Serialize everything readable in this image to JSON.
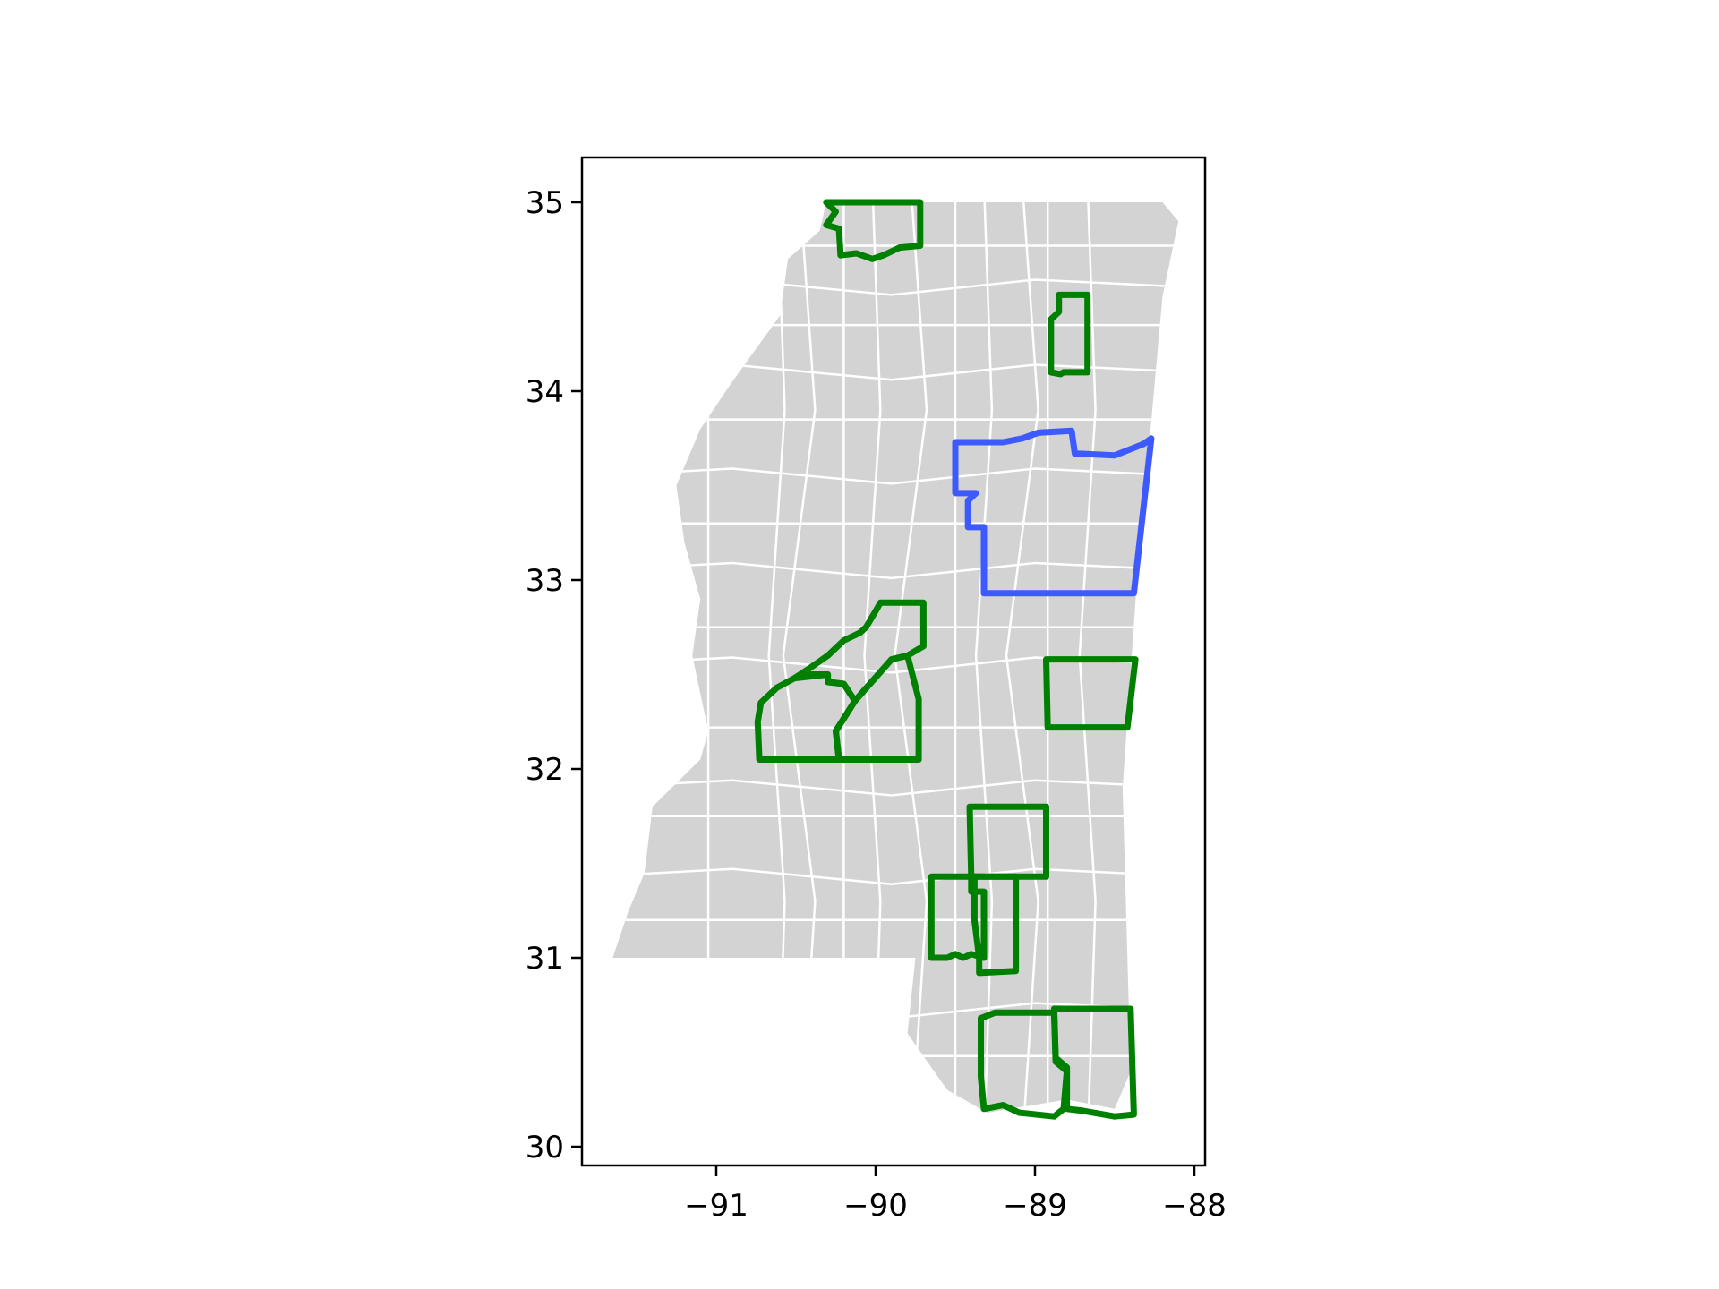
{
  "chart_data": {
    "type": "map",
    "title": "",
    "xlabel": "",
    "ylabel": "",
    "xlim": [
      -91.85,
      -87.85
    ],
    "ylim": [
      29.9,
      35.25
    ],
    "grid": false,
    "xticks": [
      {
        "value": -91,
        "label": "−91"
      },
      {
        "value": -90,
        "label": "−90"
      },
      {
        "value": -89,
        "label": "−89"
      },
      {
        "value": -88,
        "label": "−88"
      }
    ],
    "yticks": [
      {
        "value": 30,
        "label": "30"
      },
      {
        "value": 31,
        "label": "31"
      },
      {
        "value": 32,
        "label": "32"
      },
      {
        "value": 33,
        "label": "33"
      },
      {
        "value": 34,
        "label": "34"
      },
      {
        "value": 35,
        "label": "35"
      }
    ],
    "colors": {
      "state_fill": "#d3d3d3",
      "county_border": "#ffffff",
      "selected_region": "#3d5afe",
      "highlighted_counties": "#008000",
      "axes": "#000000"
    },
    "state_outline": [
      [
        -90.31,
        35.0
      ],
      [
        -88.2,
        35.0
      ],
      [
        -88.1,
        34.9
      ],
      [
        -88.2,
        34.5
      ],
      [
        -88.36,
        33.0
      ],
      [
        -88.45,
        31.9
      ],
      [
        -88.4,
        30.4
      ],
      [
        -88.5,
        30.2
      ],
      [
        -88.8,
        30.25
      ],
      [
        -89.3,
        30.18
      ],
      [
        -89.55,
        30.3
      ],
      [
        -89.8,
        30.6
      ],
      [
        -89.75,
        31.0
      ],
      [
        -91.65,
        31.0
      ],
      [
        -91.55,
        31.25
      ],
      [
        -91.45,
        31.45
      ],
      [
        -91.4,
        31.8
      ],
      [
        -91.1,
        32.05
      ],
      [
        -91.05,
        32.2
      ],
      [
        -91.15,
        32.6
      ],
      [
        -91.1,
        32.9
      ],
      [
        -91.2,
        33.2
      ],
      [
        -91.25,
        33.5
      ],
      [
        -91.1,
        33.8
      ],
      [
        -90.9,
        34.05
      ],
      [
        -90.6,
        34.4
      ],
      [
        -90.55,
        34.7
      ],
      [
        -90.35,
        34.85
      ]
    ],
    "selected_region": [
      [
        -89.5,
        33.73
      ],
      [
        -89.2,
        33.73
      ],
      [
        -89.08,
        33.75
      ],
      [
        -88.98,
        33.78
      ],
      [
        -88.77,
        33.79
      ],
      [
        -88.75,
        33.67
      ],
      [
        -88.5,
        33.66
      ],
      [
        -88.32,
        33.72
      ],
      [
        -88.27,
        33.75
      ],
      [
        -88.38,
        32.93
      ],
      [
        -89.32,
        32.93
      ],
      [
        -89.32,
        33.28
      ],
      [
        -89.42,
        33.28
      ],
      [
        -89.42,
        33.42
      ],
      [
        -89.37,
        33.46
      ],
      [
        -89.5,
        33.46
      ]
    ],
    "highlighted_counties": [
      [
        [
          -90.31,
          35.0
        ],
        [
          -89.72,
          35.0
        ],
        [
          -89.72,
          34.77
        ],
        [
          -89.85,
          34.76
        ],
        [
          -89.95,
          34.72
        ],
        [
          -90.02,
          34.7
        ],
        [
          -90.12,
          34.73
        ],
        [
          -90.22,
          34.72
        ],
        [
          -90.23,
          34.86
        ],
        [
          -90.31,
          34.88
        ],
        [
          -90.25,
          34.95
        ]
      ],
      [
        [
          -88.85,
          34.51
        ],
        [
          -88.67,
          34.51
        ],
        [
          -88.67,
          34.1
        ],
        [
          -88.82,
          34.1
        ],
        [
          -88.84,
          34.09
        ],
        [
          -88.9,
          34.1
        ],
        [
          -88.9,
          34.38
        ],
        [
          -88.85,
          34.42
        ]
      ],
      [
        [
          -89.7,
          32.88
        ],
        [
          -89.97,
          32.88
        ],
        [
          -89.99,
          32.85
        ],
        [
          -90.06,
          32.75
        ],
        [
          -90.1,
          32.72
        ],
        [
          -90.2,
          32.68
        ],
        [
          -90.3,
          32.6
        ],
        [
          -90.42,
          32.53
        ],
        [
          -90.51,
          32.48
        ],
        [
          -90.47,
          32.5
        ],
        [
          -90.3,
          32.5
        ],
        [
          -90.3,
          32.46
        ],
        [
          -90.2,
          32.45
        ],
        [
          -90.13,
          32.36
        ],
        [
          -89.9,
          32.58
        ],
        [
          -89.8,
          32.6
        ],
        [
          -89.7,
          32.65
        ]
      ],
      [
        [
          -90.51,
          32.48
        ],
        [
          -90.3,
          32.5
        ],
        [
          -90.3,
          32.46
        ],
        [
          -90.2,
          32.45
        ],
        [
          -90.13,
          32.36
        ],
        [
          -90.25,
          32.2
        ],
        [
          -90.23,
          32.05
        ],
        [
          -90.73,
          32.05
        ],
        [
          -90.74,
          32.25
        ],
        [
          -90.72,
          32.35
        ],
        [
          -90.62,
          32.43
        ]
      ],
      [
        [
          -90.13,
          32.36
        ],
        [
          -89.9,
          32.58
        ],
        [
          -89.8,
          32.6
        ],
        [
          -89.73,
          32.37
        ],
        [
          -89.73,
          32.05
        ],
        [
          -90.23,
          32.05
        ],
        [
          -90.25,
          32.2
        ]
      ],
      [
        [
          -88.93,
          32.58
        ],
        [
          -88.37,
          32.58
        ],
        [
          -88.42,
          32.22
        ],
        [
          -88.92,
          32.22
        ]
      ],
      [
        [
          -89.41,
          31.8
        ],
        [
          -88.93,
          31.8
        ],
        [
          -88.93,
          31.43
        ],
        [
          -89.4,
          31.43
        ]
      ],
      [
        [
          -89.4,
          31.43
        ],
        [
          -89.12,
          31.43
        ],
        [
          -89.12,
          30.93
        ],
        [
          -89.35,
          30.92
        ],
        [
          -89.35,
          31.0
        ],
        [
          -89.38,
          31.2
        ],
        [
          -89.38,
          31.35
        ],
        [
          -89.4,
          31.35
        ]
      ],
      [
        [
          -89.65,
          31.43
        ],
        [
          -89.38,
          31.43
        ],
        [
          -89.38,
          31.35
        ],
        [
          -89.32,
          31.35
        ],
        [
          -89.32,
          31.0
        ],
        [
          -89.4,
          31.02
        ],
        [
          -89.45,
          31.0
        ],
        [
          -89.5,
          31.02
        ],
        [
          -89.55,
          31.0
        ],
        [
          -89.65,
          31.0
        ]
      ],
      [
        [
          -88.88,
          30.71
        ],
        [
          -89.25,
          30.71
        ],
        [
          -89.34,
          30.68
        ],
        [
          -89.34,
          30.37
        ],
        [
          -89.32,
          30.2
        ],
        [
          -89.2,
          30.22
        ],
        [
          -89.1,
          30.18
        ],
        [
          -88.88,
          30.16
        ],
        [
          -88.82,
          30.2
        ],
        [
          -88.8,
          30.4
        ],
        [
          -88.87,
          30.45
        ]
      ],
      [
        [
          -88.88,
          30.73
        ],
        [
          -88.4,
          30.73
        ],
        [
          -88.38,
          30.17
        ],
        [
          -88.5,
          30.16
        ],
        [
          -88.7,
          30.19
        ],
        [
          -88.8,
          30.2
        ],
        [
          -88.8,
          30.42
        ],
        [
          -88.87,
          30.47
        ]
      ]
    ]
  }
}
